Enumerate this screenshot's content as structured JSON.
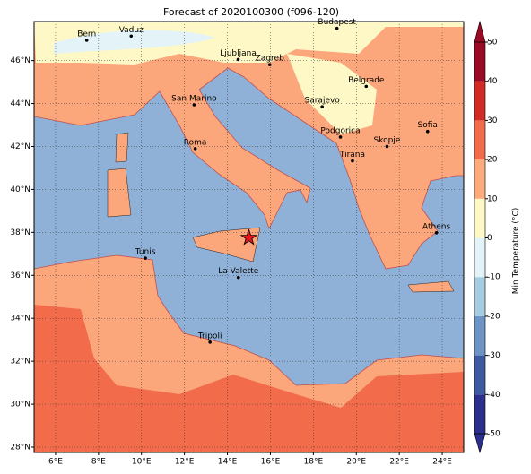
{
  "chart_data": {
    "type": "map",
    "title": "Forecast of 2020100300 (f096-120)",
    "xlim": [
      5,
      25
    ],
    "ylim": [
      27.75,
      47.82
    ],
    "xticks": [
      {
        "value": 6,
        "label": "6°E"
      },
      {
        "value": 8,
        "label": "8°E"
      },
      {
        "value": 10,
        "label": "10°E"
      },
      {
        "value": 12,
        "label": "12°E"
      },
      {
        "value": 14,
        "label": "14°E"
      },
      {
        "value": 16,
        "label": "16°E"
      },
      {
        "value": 18,
        "label": "18°E"
      },
      {
        "value": 20,
        "label": "20°E"
      },
      {
        "value": 22,
        "label": "22°E"
      },
      {
        "value": 24,
        "label": "24°E"
      }
    ],
    "yticks": [
      {
        "value": 28,
        "label": "28°N"
      },
      {
        "value": 30,
        "label": "30°N"
      },
      {
        "value": 32,
        "label": "32°N"
      },
      {
        "value": 34,
        "label": "34°N"
      },
      {
        "value": 36,
        "label": "36°N"
      },
      {
        "value": 38,
        "label": "38°N"
      },
      {
        "value": 40,
        "label": "40°N"
      },
      {
        "value": 42,
        "label": "42°N"
      },
      {
        "value": 44,
        "label": "44°N"
      },
      {
        "value": 46,
        "label": "46°N"
      }
    ],
    "grid": true,
    "cities": [
      {
        "name": "Bern",
        "lon": 7.45,
        "lat": 46.95
      },
      {
        "name": "Vaduz",
        "lon": 9.52,
        "lat": 47.14
      },
      {
        "name": "Budapest",
        "lon": 19.1,
        "lat": 47.5
      },
      {
        "name": "Ljubljana",
        "lon": 14.5,
        "lat": 46.05
      },
      {
        "name": "Zagreb",
        "lon": 15.97,
        "lat": 45.81
      },
      {
        "name": "Belgrade",
        "lon": 20.46,
        "lat": 44.8
      },
      {
        "name": "San Marino",
        "lon": 12.45,
        "lat": 43.94
      },
      {
        "name": "Sarajevo",
        "lon": 18.41,
        "lat": 43.85
      },
      {
        "name": "Sofia",
        "lon": 23.32,
        "lat": 42.7
      },
      {
        "name": "Roma",
        "lon": 12.5,
        "lat": 41.9
      },
      {
        "name": "Podgorica",
        "lon": 19.26,
        "lat": 42.44
      },
      {
        "name": "Skopje",
        "lon": 21.43,
        "lat": 42.0
      },
      {
        "name": "Tirana",
        "lon": 19.82,
        "lat": 41.33
      },
      {
        "name": "Athens",
        "lon": 23.73,
        "lat": 37.98
      },
      {
        "name": "Tunis",
        "lon": 10.18,
        "lat": 36.8
      },
      {
        "name": "La Valette",
        "lon": 14.51,
        "lat": 35.9
      },
      {
        "name": "Tripoli",
        "lon": 13.19,
        "lat": 32.89
      }
    ],
    "marker": {
      "lon": 15.0,
      "lat": 37.75,
      "color": "#e8141e"
    },
    "colorbar": {
      "label": "Min Temperature (°C)",
      "ticks": [
        -50,
        -40,
        -30,
        -20,
        -10,
        0,
        10,
        20,
        30,
        40,
        50
      ],
      "colors": [
        "#2b2f8c",
        "#3d5aa3",
        "#6c94c4",
        "#a6cce2",
        "#e3f3f8",
        "#fef8c6",
        "#fdab7c",
        "#f26c4b",
        "#d22b26",
        "#9b0a25"
      ]
    }
  }
}
